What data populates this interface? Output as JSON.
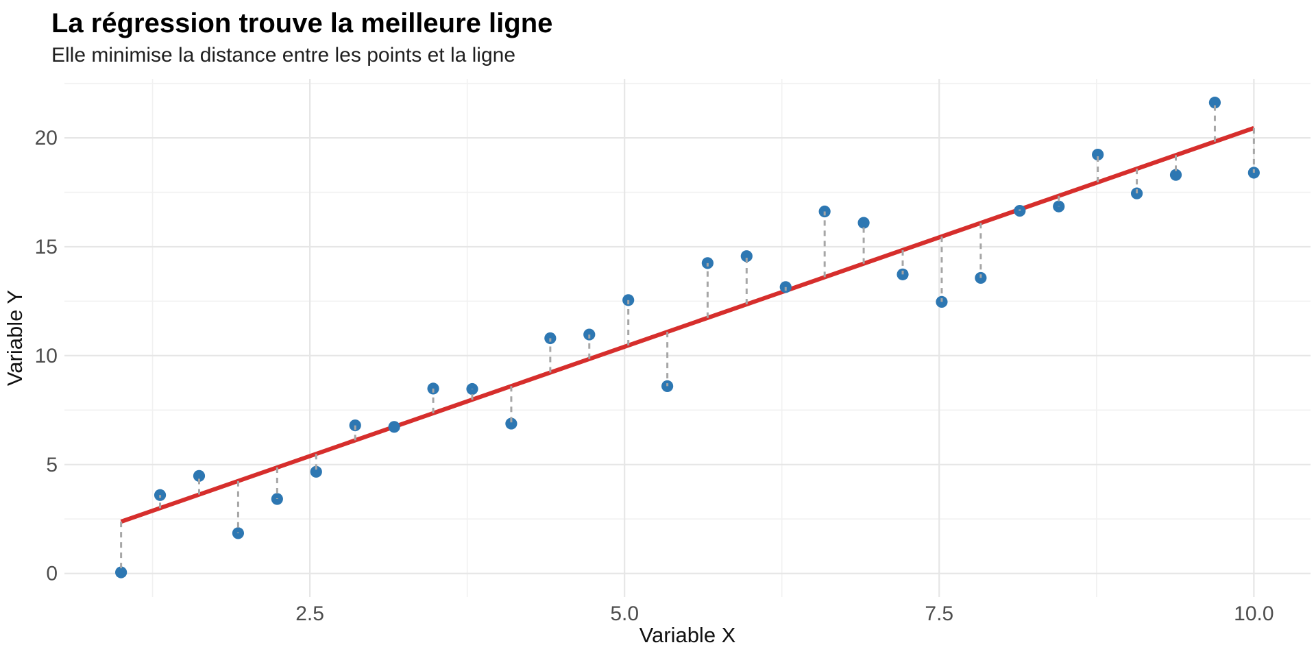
{
  "chart_data": {
    "type": "scatter",
    "title": "La régression trouve la meilleure ligne",
    "subtitle": "Elle minimise la distance entre les points et la ligne",
    "xlabel": "Variable X",
    "ylabel": "Variable Y",
    "xlim": [
      0.55,
      10.45
    ],
    "ylim": [
      -1.08,
      22.71
    ],
    "x_ticks": [
      2.5,
      5.0,
      7.5,
      10.0
    ],
    "x_tick_labels": [
      "2.5",
      "5.0",
      "7.5",
      "10.0"
    ],
    "y_ticks": [
      0,
      5,
      10,
      15,
      20
    ],
    "y_tick_labels": [
      "0",
      "5",
      "10",
      "15",
      "20"
    ],
    "x_minor_gridlines": [
      1.25,
      3.75,
      6.25,
      8.75
    ],
    "y_minor_gridlines": [
      2.5,
      7.5,
      12.5,
      17.5,
      22.5
    ],
    "grid": true,
    "legend": false,
    "points": [
      [
        1.0,
        0.05
      ],
      [
        1.31,
        3.6
      ],
      [
        1.62,
        4.48
      ],
      [
        1.93,
        1.85
      ],
      [
        2.24,
        3.42
      ],
      [
        2.55,
        4.67
      ],
      [
        2.86,
        6.8
      ],
      [
        3.17,
        6.73
      ],
      [
        3.48,
        8.49
      ],
      [
        3.79,
        8.47
      ],
      [
        4.1,
        6.88
      ],
      [
        4.41,
        10.8
      ],
      [
        4.72,
        10.97
      ],
      [
        5.03,
        12.55
      ],
      [
        5.34,
        8.6
      ],
      [
        5.66,
        14.25
      ],
      [
        5.97,
        14.57
      ],
      [
        6.28,
        13.15
      ],
      [
        6.59,
        16.62
      ],
      [
        6.9,
        16.1
      ],
      [
        7.21,
        13.73
      ],
      [
        7.52,
        12.47
      ],
      [
        7.83,
        13.57
      ],
      [
        8.14,
        16.65
      ],
      [
        8.45,
        16.85
      ],
      [
        8.76,
        19.23
      ],
      [
        9.07,
        17.45
      ],
      [
        9.38,
        18.3
      ],
      [
        9.69,
        21.62
      ],
      [
        10.0,
        18.4
      ]
    ],
    "regression_line": {
      "slope": 2.008,
      "intercept": 0.37,
      "x_start": 1.0,
      "x_end": 10.0
    },
    "residuals_shown": true,
    "colors": {
      "point": "#2d77b2",
      "line": "#d62e2c",
      "residual": "#a6a6a6",
      "grid_major": "#e6e6e6",
      "grid_minor": "#f1f1f1",
      "tick_label": "#4d4d4d",
      "axis_title": "#111111",
      "title": "#000000"
    }
  }
}
